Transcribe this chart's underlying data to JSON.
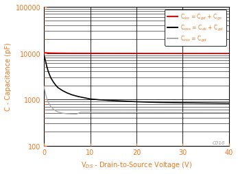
{
  "xlabel": "V$_{DS}$ - Drain-to-Source Voltage (V)",
  "ylabel": "C - Capacitance (pF)",
  "xlim": [
    0,
    40
  ],
  "ylim_log": [
    100,
    100000
  ],
  "xticks": [
    0,
    10,
    20,
    30,
    40
  ],
  "legend": [
    {
      "label": "C$_{iss}$ = C$_{gd}$ + C$_{gs}$",
      "color": "#ff0000"
    },
    {
      "label": "C$_{oss}$ = C$_{ds}$ + C$_{gd}$",
      "color": "#000000"
    },
    {
      "label": "C$_{rss}$ = C$_{gd}$",
      "color": "#aaaaaa"
    }
  ],
  "Ciss": {
    "x": [
      0.0,
      0.5,
      1.0,
      2.0,
      3.0,
      5.0,
      7.0,
      10.0,
      15.0,
      20.0,
      25.0,
      30.0,
      35.0,
      40.0
    ],
    "y": [
      10400,
      10200,
      10100,
      10050,
      10000,
      9960,
      9940,
      9920,
      9900,
      9880,
      9870,
      9860,
      9855,
      9850
    ],
    "color": "#ff0000",
    "lw": 1.2
  },
  "Coss": {
    "x": [
      0.0,
      0.3,
      0.6,
      0.9,
      1.2,
      1.5,
      2.0,
      2.5,
      3.0,
      4.0,
      5.0,
      6.0,
      7.0,
      8.0,
      9.0,
      10.0,
      11.0,
      12.0,
      14.0,
      16.0,
      18.0,
      20.0,
      22.0,
      25.0,
      28.0,
      30.0,
      35.0,
      40.0
    ],
    "y": [
      9200,
      7000,
      5200,
      4100,
      3400,
      2900,
      2400,
      2050,
      1800,
      1550,
      1380,
      1260,
      1180,
      1120,
      1070,
      1020,
      1000,
      980,
      950,
      930,
      910,
      890,
      875,
      860,
      850,
      845,
      835,
      828
    ],
    "color": "#000000",
    "lw": 1.2
  },
  "Crss": {
    "x": [
      0.0,
      0.3,
      0.6,
      0.9,
      1.2,
      1.5,
      2.0,
      2.5,
      3.0,
      4.0,
      5.0,
      6.0,
      7.0,
      8.0,
      10.0,
      12.0,
      15.0,
      20.0,
      25.0,
      30.0,
      35.0,
      40.0
    ],
    "y": [
      1900,
      1350,
      1050,
      880,
      770,
      700,
      620,
      570,
      535,
      505,
      490,
      485,
      482,
      530,
      528,
      526,
      524,
      522,
      520,
      519,
      518,
      517
    ],
    "color": "#aaaaaa",
    "lw": 1.0
  },
  "watermark": "C016",
  "xlabel_color": "#e87722",
  "ylabel_color": "#e87722",
  "tick_color": "#e87722",
  "bg_color": "#ffffff",
  "grid_major_color": "#000000",
  "grid_minor_color": "#000000"
}
